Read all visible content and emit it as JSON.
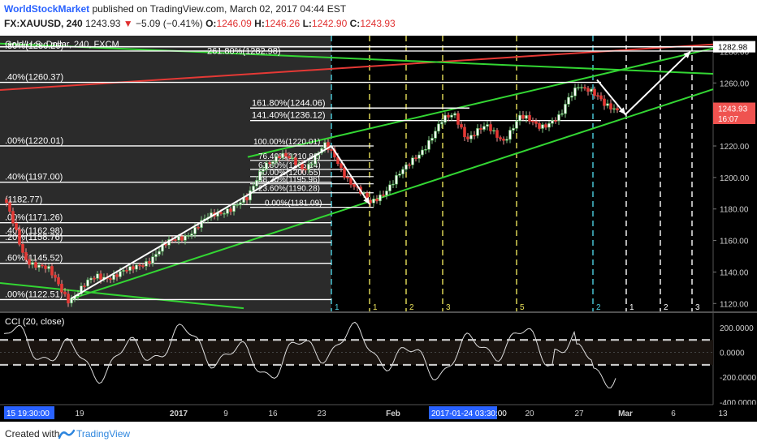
{
  "header": {
    "author": "WorldStockMarket",
    "published_text": "published on TradingView.com, March 02, 2017 04:44 EST",
    "symbol": "FX:XAUUSD, 240",
    "last": "1243.93",
    "change_arrow": "▼",
    "change": "−5.09 (−0.41%)",
    "o_label": "O:",
    "o_value": "1246.09",
    "h_label": "H:",
    "h_value": "1246.26",
    "l_label": "L:",
    "l_value": "1242.90",
    "c_label": "C:",
    "c_value": "1243.93"
  },
  "chart_data": [
    {
      "type": "candlestick",
      "title": "Gold/U.S. Dollar, 240, FXCM",
      "y_axis_ticks": [
        "1120.00",
        "1140.00",
        "1160.00",
        "1180.00",
        "1200.00",
        "1220.00",
        "1240.00",
        "1260.00",
        "1280.00"
      ],
      "ylim": [
        1115,
        1290
      ],
      "price_labels": [
        {
          "text": "1282.98",
          "value": 1282.98,
          "color": "#ffffff"
        },
        {
          "text": "1243.93",
          "value": 1243.93,
          "color": "#ef5350"
        },
        {
          "text": "16:07",
          "value": 1237.5,
          "color": "#ef5350"
        }
      ],
      "x_axis_ticks": [
        "19",
        "2017",
        "9",
        "16",
        "23",
        "Feb",
        "6",
        "13",
        "20",
        "27",
        "Mar",
        "6",
        "13"
      ],
      "x_axis_time_labels": [
        "15 19:30:00",
        "2017-01-24 03:30:00"
      ],
      "left_fib_levels": [
        {
          "text": ".80%(1280.26)",
          "value": 1280.26
        },
        {
          "text": ".40%(1260.37)",
          "value": 1260.37
        },
        {
          "text": ".00%(1220.01)",
          "value": 1220.01
        },
        {
          "text": ".40%(1197.00)",
          "value": 1197.0
        },
        {
          "text": "(1182.77)",
          "value": 1182.77
        },
        {
          "text": ".00%(1171.26)",
          "value": 1171.26
        },
        {
          "text": ".40%(1162.98)",
          "value": 1162.98
        },
        {
          "text": ".20%(1158.76)",
          "value": 1158.76
        },
        {
          "text": ".60%(1145.52)",
          "value": 1145.52
        },
        {
          "text": ".00%(1122.51)",
          "value": 1122.51
        }
      ],
      "top_fib_label": {
        "text": "261.80%(1282.98)",
        "value": 1282.98
      },
      "ext_fib_levels": [
        {
          "text": "161.80%(1244.06)",
          "value": 1244.06
        },
        {
          "text": "141.40%(1236.12)",
          "value": 1236.12
        }
      ],
      "retracement_levels": [
        {
          "text": "100.00%(1220.01)",
          "value": 1220.01
        },
        {
          "text": "76.40%(1210.82)",
          "value": 1210.82
        },
        {
          "text": "61.80%(1205.14)",
          "value": 1205.14
        },
        {
          "text": "50.00%(1200.55)",
          "value": 1200.55
        },
        {
          "text": "38.20%(1195.96)",
          "value": 1195.96
        },
        {
          "text": "23.60%(1190.28)",
          "value": 1190.28
        },
        {
          "text": "0.00%(1181.09)",
          "value": 1181.09
        }
      ],
      "time_cycle_labels": [
        "1",
        "1",
        "2",
        "3",
        "5",
        "2",
        "1",
        "2",
        "3"
      ]
    },
    {
      "type": "line",
      "title": "CCI (20, close)",
      "y_axis_ticks": [
        "200.0000",
        "0.0000",
        "-200.0000",
        "-400.0000"
      ],
      "ylim": [
        -420,
        310
      ],
      "bands": [
        100,
        -100
      ]
    }
  ],
  "footer": {
    "created_with": "Created with",
    "brand": "TradingView"
  }
}
